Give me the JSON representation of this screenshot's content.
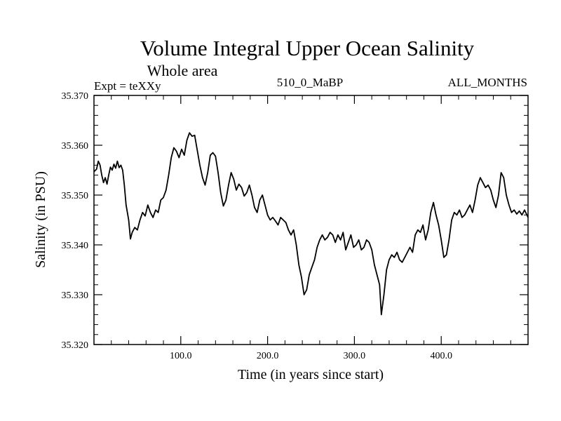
{
  "chart_data": {
    "type": "line",
    "title": "Volume Integral Upper Ocean Salinity",
    "subtitle": "Whole area",
    "header_left": "Expt = teXXy",
    "header_center": "510_0_MaBP",
    "header_right": "ALL_MONTHS",
    "xlabel": "Time (in years since start)",
    "ylabel": "Salinity (in PSU)",
    "xlim": [
      0,
      500
    ],
    "ylim": [
      35.32,
      35.37
    ],
    "x_ticks": [
      100,
      200,
      300,
      400
    ],
    "x_tick_labels": [
      "100.0",
      "200.0",
      "300.0",
      "400.0"
    ],
    "y_ticks": [
      35.32,
      35.33,
      35.34,
      35.35,
      35.36,
      35.37
    ],
    "y_tick_labels": [
      "35.320",
      "35.330",
      "35.340",
      "35.350",
      "35.360",
      "35.370"
    ],
    "grid": false,
    "series": [
      {
        "name": "salinity",
        "color": "#000000",
        "points": [
          [
            0,
            35.3547
          ],
          [
            3,
            35.3552
          ],
          [
            5,
            35.3568
          ],
          [
            7,
            35.356
          ],
          [
            9,
            35.354
          ],
          [
            11,
            35.3525
          ],
          [
            13,
            35.3535
          ],
          [
            15,
            35.3522
          ],
          [
            17,
            35.354
          ],
          [
            19,
            35.3556
          ],
          [
            21,
            35.355
          ],
          [
            23,
            35.3562
          ],
          [
            25,
            35.3554
          ],
          [
            27,
            35.3568
          ],
          [
            29,
            35.3555
          ],
          [
            31,
            35.356
          ],
          [
            33,
            35.355
          ],
          [
            35,
            35.352
          ],
          [
            37,
            35.348
          ],
          [
            40,
            35.345
          ],
          [
            42,
            35.3412
          ],
          [
            44,
            35.3425
          ],
          [
            47,
            35.3435
          ],
          [
            50,
            35.343
          ],
          [
            53,
            35.345
          ],
          [
            56,
            35.3465
          ],
          [
            59,
            35.3458
          ],
          [
            62,
            35.348
          ],
          [
            65,
            35.3465
          ],
          [
            68,
            35.3455
          ],
          [
            71,
            35.347
          ],
          [
            74,
            35.3465
          ],
          [
            77,
            35.349
          ],
          [
            80,
            35.3495
          ],
          [
            83,
            35.351
          ],
          [
            86,
            35.354
          ],
          [
            89,
            35.3575
          ],
          [
            92,
            35.3595
          ],
          [
            95,
            35.3588
          ],
          [
            98,
            35.3575
          ],
          [
            101,
            35.3592
          ],
          [
            104,
            35.358
          ],
          [
            107,
            35.361
          ],
          [
            110,
            35.3625
          ],
          [
            113,
            35.3618
          ],
          [
            116,
            35.362
          ],
          [
            119,
            35.359
          ],
          [
            122,
            35.356
          ],
          [
            125,
            35.3535
          ],
          [
            128,
            35.352
          ],
          [
            131,
            35.3545
          ],
          [
            134,
            35.358
          ],
          [
            137,
            35.3585
          ],
          [
            140,
            35.3578
          ],
          [
            143,
            35.3545
          ],
          [
            146,
            35.3505
          ],
          [
            149,
            35.3478
          ],
          [
            152,
            35.349
          ],
          [
            155,
            35.352
          ],
          [
            158,
            35.3545
          ],
          [
            161,
            35.3532
          ],
          [
            164,
            35.351
          ],
          [
            167,
            35.3522
          ],
          [
            170,
            35.3515
          ],
          [
            173,
            35.3498
          ],
          [
            176,
            35.3505
          ],
          [
            179,
            35.352
          ],
          [
            182,
            35.35
          ],
          [
            185,
            35.3475
          ],
          [
            188,
            35.3465
          ],
          [
            191,
            35.349
          ],
          [
            194,
            35.35
          ],
          [
            197,
            35.348
          ],
          [
            200,
            35.346
          ],
          [
            203,
            35.345
          ],
          [
            206,
            35.3455
          ],
          [
            209,
            35.3448
          ],
          [
            212,
            35.344
          ],
          [
            215,
            35.3455
          ],
          [
            218,
            35.345
          ],
          [
            221,
            35.3445
          ],
          [
            224,
            35.343
          ],
          [
            227,
            35.342
          ],
          [
            230,
            35.343
          ],
          [
            233,
            35.34
          ],
          [
            236,
            35.336
          ],
          [
            239,
            35.3335
          ],
          [
            242,
            35.33
          ],
          [
            245,
            35.331
          ],
          [
            248,
            35.334
          ],
          [
            251,
            35.3355
          ],
          [
            254,
            35.337
          ],
          [
            257,
            35.3395
          ],
          [
            260,
            35.341
          ],
          [
            263,
            35.342
          ],
          [
            266,
            35.341
          ],
          [
            269,
            35.3415
          ],
          [
            272,
            35.3425
          ],
          [
            275,
            35.342
          ],
          [
            278,
            35.3405
          ],
          [
            281,
            35.342
          ],
          [
            284,
            35.341
          ],
          [
            287,
            35.3425
          ],
          [
            290,
            35.339
          ],
          [
            293,
            35.3405
          ],
          [
            296,
            35.342
          ],
          [
            299,
            35.3395
          ],
          [
            302,
            35.34
          ],
          [
            305,
            35.341
          ],
          [
            308,
            35.339
          ],
          [
            311,
            35.3395
          ],
          [
            314,
            35.341
          ],
          [
            317,
            35.3405
          ],
          [
            320,
            35.339
          ],
          [
            323,
            35.336
          ],
          [
            326,
            35.334
          ],
          [
            329,
            35.332
          ],
          [
            331,
            35.326
          ],
          [
            334,
            35.33
          ],
          [
            337,
            35.335
          ],
          [
            340,
            35.337
          ],
          [
            343,
            35.338
          ],
          [
            346,
            35.3375
          ],
          [
            349,
            35.3385
          ],
          [
            352,
            35.337
          ],
          [
            355,
            35.3365
          ],
          [
            358,
            35.3375
          ],
          [
            361,
            35.3385
          ],
          [
            364,
            35.3395
          ],
          [
            367,
            35.3385
          ],
          [
            370,
            35.342
          ],
          [
            373,
            35.343
          ],
          [
            376,
            35.3425
          ],
          [
            379,
            35.344
          ],
          [
            382,
            35.341
          ],
          [
            385,
            35.343
          ],
          [
            388,
            35.3465
          ],
          [
            391,
            35.3485
          ],
          [
            394,
            35.346
          ],
          [
            397,
            35.344
          ],
          [
            400,
            35.341
          ],
          [
            403,
            35.3375
          ],
          [
            406,
            35.338
          ],
          [
            409,
            35.341
          ],
          [
            412,
            35.345
          ],
          [
            415,
            35.3465
          ],
          [
            418,
            35.346
          ],
          [
            421,
            35.347
          ],
          [
            424,
            35.3455
          ],
          [
            427,
            35.346
          ],
          [
            430,
            35.347
          ],
          [
            433,
            35.348
          ],
          [
            436,
            35.3465
          ],
          [
            439,
            35.349
          ],
          [
            442,
            35.352
          ],
          [
            445,
            35.3535
          ],
          [
            448,
            35.3525
          ],
          [
            451,
            35.3515
          ],
          [
            454,
            35.352
          ],
          [
            457,
            35.351
          ],
          [
            460,
            35.349
          ],
          [
            463,
            35.3475
          ],
          [
            466,
            35.35
          ],
          [
            469,
            35.3545
          ],
          [
            472,
            35.3535
          ],
          [
            475,
            35.35
          ],
          [
            478,
            35.348
          ],
          [
            481,
            35.3465
          ],
          [
            484,
            35.347
          ],
          [
            487,
            35.3462
          ],
          [
            490,
            35.3468
          ],
          [
            493,
            35.346
          ],
          [
            496,
            35.347
          ],
          [
            500,
            35.3455
          ]
        ]
      }
    ]
  }
}
